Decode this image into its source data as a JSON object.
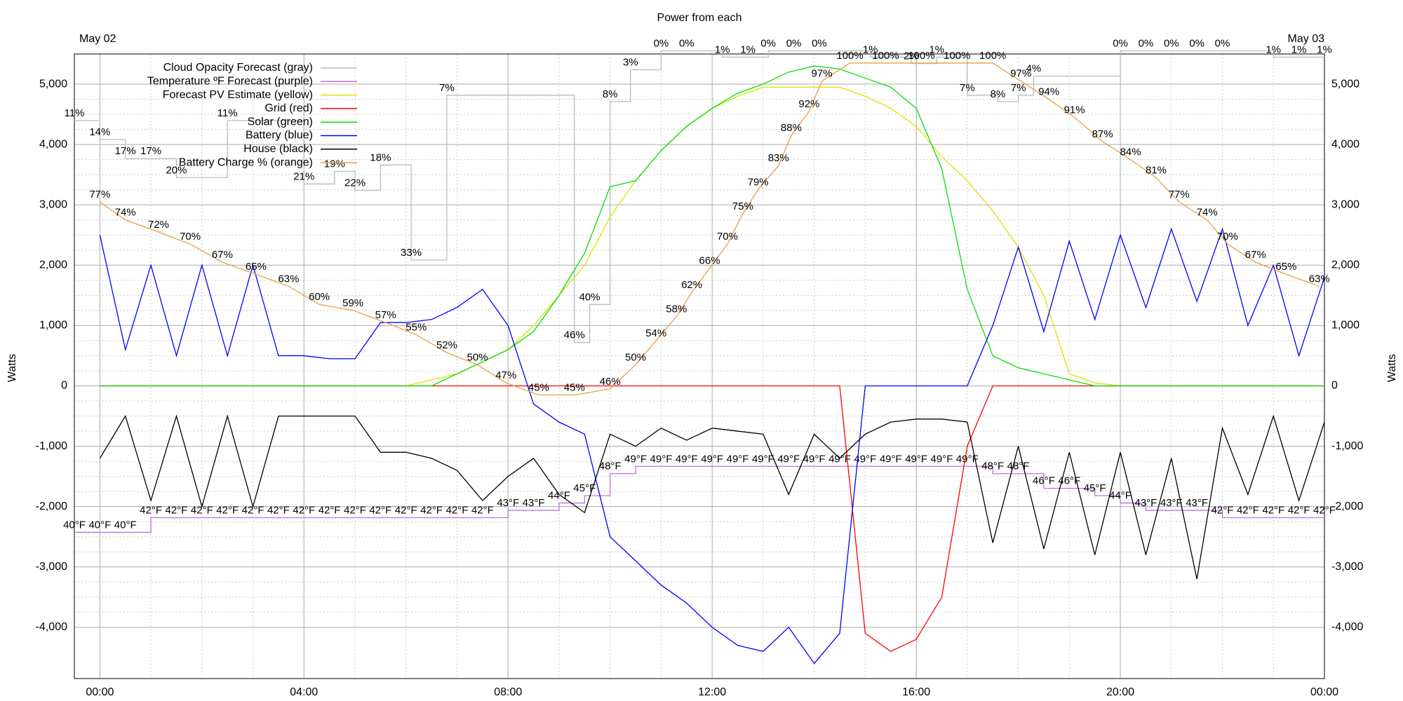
{
  "chart_data": {
    "type": "line",
    "title": "Power from each",
    "annotations": [
      "May 02",
      "May 03"
    ],
    "y_label": "Watts",
    "y2_label": "Watts",
    "xlim": [
      -0.5,
      24
    ],
    "xticks": [
      {
        "value": 0,
        "label": "00:00"
      },
      {
        "value": 4,
        "label": "04:00"
      },
      {
        "value": 8,
        "label": "08:00"
      },
      {
        "value": 12,
        "label": "12:00"
      },
      {
        "value": 16,
        "label": "16:00"
      },
      {
        "value": 20,
        "label": "20:00"
      },
      {
        "value": 24,
        "label": "00:00"
      }
    ],
    "ylim": [
      -4850,
      5500
    ],
    "yticks": [
      {
        "value": -4000,
        "label": "-4,000"
      },
      {
        "value": -3000,
        "label": "-3,000"
      },
      {
        "value": -2000,
        "label": "-2,000"
      },
      {
        "value": -1000,
        "label": "-1,000"
      },
      0,
      {
        "value": 1000,
        "label": "1,000"
      },
      {
        "value": 2000,
        "label": "2,000"
      },
      {
        "value": 3000,
        "label": "3,000"
      },
      {
        "value": 4000,
        "label": "4,000"
      },
      {
        "value": 5000,
        "label": "5,000"
      }
    ],
    "y3lim": [
      -2,
      101.5
    ],
    "y4lim": [
      99,
      0.5
    ],
    "y5lim": [
      20.06,
      105.24
    ],
    "grid": true,
    "legend": "top-left",
    "x": [
      0,
      0.5,
      1,
      1.5,
      2,
      2.5,
      3,
      3.5,
      4,
      4.5,
      5,
      5.5,
      6,
      6.5,
      7,
      7.5,
      8,
      8.5,
      9,
      9.5,
      10,
      10.5,
      11,
      11.5,
      12,
      12.5,
      13,
      13.5,
      14,
      14.5,
      15,
      15.5,
      16,
      16.5,
      17,
      17.5,
      18,
      18.5,
      19,
      19.5,
      20,
      20.5,
      21,
      21.5,
      22,
      22.5,
      23,
      23.5,
      24
    ],
    "series": [
      {
        "name": "Cloud Opacity Forecast (gray)",
        "color": "#bbbbbb",
        "label_color": "#b0b0b0",
        "axis": "y4",
        "step": true,
        "x": [
          -0.5,
          0,
          0.5,
          1,
          1.5,
          2.5,
          4,
          4.6,
          5,
          5.5,
          6.1,
          6.8,
          9.3,
          9.6,
          10,
          10.4,
          11,
          11.5,
          12.2,
          12.7,
          13.1,
          13.6,
          14.1,
          15.1,
          15.9,
          16.4,
          17,
          17.6,
          18,
          18.3,
          20,
          20.5,
          21,
          21.5,
          22,
          23,
          23.5,
          24
        ],
        "values": [
          11,
          14,
          17,
          17,
          20,
          11,
          21,
          19,
          22,
          18,
          33,
          7,
          46,
          40,
          8,
          3,
          0,
          0,
          1,
          1,
          0,
          0,
          0,
          1,
          2,
          1,
          7,
          8,
          7,
          4,
          0,
          0,
          0,
          0,
          0,
          1,
          1,
          1
        ],
        "value_labels": [
          "11%",
          "14%",
          "17%",
          "17%",
          "20%",
          "11%",
          "21%",
          "19%",
          "22%",
          "18%",
          "33%",
          "7%",
          "46%",
          "40%",
          "8%",
          "3%",
          "0%",
          "0%",
          "1%",
          "1%",
          "0%",
          "0%",
          "0%",
          "1%",
          "2%",
          "1%",
          "7%",
          "8%",
          "7%",
          "4%",
          "0%",
          "0%",
          "0%",
          "0%",
          "0%",
          "1%",
          "1%",
          "1%"
        ]
      },
      {
        "name": "Temperature ºF Forecast (purple)",
        "color": "#c070e0",
        "label_color": "#c070e0",
        "axis": "y5",
        "step": true,
        "x": [
          -0.5,
          0,
          0.5,
          1,
          1.5,
          2,
          2.5,
          3,
          3.5,
          4,
          4.5,
          5,
          5.5,
          6,
          6.5,
          7,
          7.5,
          8,
          8.5,
          9,
          9.5,
          10,
          10.5,
          11,
          11.5,
          12,
          12.5,
          13,
          13.5,
          14,
          14.5,
          15,
          15.5,
          16,
          16.5,
          17,
          17.5,
          18,
          18.5,
          19,
          19.5,
          20,
          20.5,
          21,
          21.5,
          22,
          22.5,
          23,
          23.5,
          24
        ],
        "values": [
          40,
          40,
          40,
          42,
          42,
          42,
          42,
          42,
          42,
          42,
          42,
          42,
          42,
          42,
          42,
          42,
          42,
          43,
          43,
          44,
          45,
          48,
          49,
          49,
          49,
          49,
          49,
          49,
          49,
          49,
          49,
          49,
          49,
          49,
          49,
          49,
          48,
          48,
          46,
          46,
          45,
          44,
          43,
          43,
          43,
          42,
          42,
          42,
          42,
          42
        ],
        "value_labels": [
          "40°F",
          "40°F",
          "40°F",
          "42°F",
          "42°F",
          "42°F",
          "42°F",
          "42°F",
          "42°F",
          "42°F",
          "42°F",
          "42°F",
          "42°F",
          "42°F",
          "42°F",
          "42°F",
          "42°F",
          "43°F",
          "43°F",
          "44°F",
          "45°F",
          "48°F",
          "49°F",
          "49°F",
          "49°F",
          "49°F",
          "49°F",
          "49°F",
          "49°F",
          "49°F",
          "49°F",
          "49°F",
          "49°F",
          "49°F",
          "49°F",
          "49°F",
          "48°F",
          "48°F",
          "46°F",
          "46°F",
          "45°F",
          "44°F",
          "43°F",
          "43°F",
          "43°F",
          "42°F",
          "42°F",
          "42°F",
          "42°F",
          "42°F"
        ]
      },
      {
        "name": "Forecast PV Estimate (yellow)",
        "color": "#e0e000",
        "values": [
          0,
          0,
          0,
          0,
          0,
          0,
          0,
          0,
          0,
          0,
          0,
          0,
          0,
          100,
          200,
          400,
          600,
          1000,
          1500,
          2000,
          2800,
          3400,
          3900,
          4300,
          4600,
          4800,
          4950,
          4950,
          4950,
          4950,
          4800,
          4600,
          4300,
          3800,
          3400,
          2900,
          2300,
          1500,
          200,
          50,
          0,
          0,
          0,
          0,
          0,
          0,
          0,
          0,
          0
        ]
      },
      {
        "name": "Grid (red)",
        "color": "#ff0000",
        "values": [
          0,
          0,
          0,
          0,
          0,
          0,
          0,
          0,
          0,
          0,
          0,
          0,
          0,
          0,
          0,
          0,
          0,
          0,
          0,
          0,
          0,
          0,
          0,
          0,
          0,
          0,
          0,
          0,
          0,
          0,
          -4100,
          -4400,
          -4200,
          -3500,
          -1000,
          0,
          0,
          0,
          0,
          0,
          0,
          0,
          0,
          0,
          0,
          0,
          0,
          0,
          0
        ]
      },
      {
        "name": "Solar (green)",
        "color": "#00e000",
        "values": [
          0,
          0,
          0,
          0,
          0,
          0,
          0,
          0,
          0,
          0,
          0,
          0,
          0,
          0,
          200,
          400,
          600,
          900,
          1500,
          2200,
          3300,
          3400,
          3900,
          4300,
          4600,
          4850,
          5000,
          5200,
          5300,
          5250,
          5100,
          4950,
          4600,
          3600,
          1600,
          500,
          300,
          200,
          100,
          0,
          0,
          0,
          0,
          0,
          0,
          0,
          0,
          0,
          0
        ]
      },
      {
        "name": "Battery (blue)",
        "color": "#0000ff",
        "values": [
          2500,
          600,
          2000,
          500,
          2000,
          500,
          2000,
          500,
          500,
          450,
          450,
          1050,
          1050,
          1100,
          1300,
          1600,
          1000,
          -300,
          -600,
          -800,
          -2500,
          -2900,
          -3300,
          -3600,
          -4000,
          -4300,
          -4400,
          -4000,
          -4600,
          -4100,
          0,
          0,
          0,
          0,
          0,
          1000,
          2300,
          900,
          2400,
          1100,
          2500,
          1300,
          2600,
          1400,
          2600,
          1000,
          2000,
          500,
          1800
        ]
      },
      {
        "name": "House (black)",
        "color": "#000000",
        "values": [
          -1200,
          -500,
          -1900,
          -500,
          -2000,
          -500,
          -2000,
          -500,
          -500,
          -500,
          -500,
          -1100,
          -1100,
          -1200,
          -1400,
          -1900,
          -1500,
          -1200,
          -1800,
          -2100,
          -800,
          -1000,
          -700,
          -900,
          -700,
          -750,
          -800,
          -1800,
          -800,
          -1200,
          -800,
          -600,
          -550,
          -550,
          -600,
          -2600,
          -1000,
          -2700,
          -1100,
          -2800,
          -1100,
          -2800,
          -1200,
          -3200,
          -700,
          -1800,
          -500,
          -1900,
          -600
        ]
      },
      {
        "name": "Battery Charge % (orange)",
        "color": "#e8a040",
        "label_color": "#8b4513",
        "axis": "y3",
        "x": [
          0,
          0.5,
          1.15,
          1.77,
          2.4,
          3.06,
          3.7,
          4.3,
          4.96,
          5.6,
          6.2,
          6.8,
          7.4,
          7.96,
          8.6,
          9.3,
          10,
          10.5,
          10.9,
          11.3,
          11.6,
          11.95,
          12.3,
          12.6,
          12.9,
          13.3,
          13.55,
          13.9,
          14.15,
          14.7,
          15.4,
          16.1,
          16.8,
          17.5,
          18.05,
          18.6,
          19.1,
          19.65,
          20.2,
          20.7,
          21.15,
          21.7,
          22.1,
          22.65,
          23.25,
          23.9
        ],
        "values": [
          77,
          74,
          72,
          70,
          67,
          65,
          63,
          60,
          59,
          57,
          55,
          52,
          50,
          47,
          45,
          45,
          46,
          50,
          54,
          58,
          62,
          66,
          70,
          75,
          79,
          83,
          88,
          92,
          97,
          100,
          100,
          100,
          100,
          100,
          97,
          94,
          91,
          87,
          84,
          81,
          77,
          74,
          70,
          67,
          65,
          63
        ],
        "value_labels": [
          "77%",
          "74%",
          "72%",
          "70%",
          "67%",
          "65%",
          "63%",
          "60%",
          "59%",
          "57%",
          "55%",
          "52%",
          "50%",
          "47%",
          "45%",
          "45%",
          "46%",
          "50%",
          "54%",
          "58%",
          "62%",
          "66%",
          "70%",
          "75%",
          "79%",
          "83%",
          "88%",
          "92%",
          "97%",
          "100%",
          "100%",
          "100%",
          "100%",
          "100%",
          "97%",
          "94%",
          "91%",
          "87%",
          "84%",
          "81%",
          "77%",
          "74%",
          "70%",
          "67%",
          "65%",
          "63%"
        ]
      }
    ]
  }
}
